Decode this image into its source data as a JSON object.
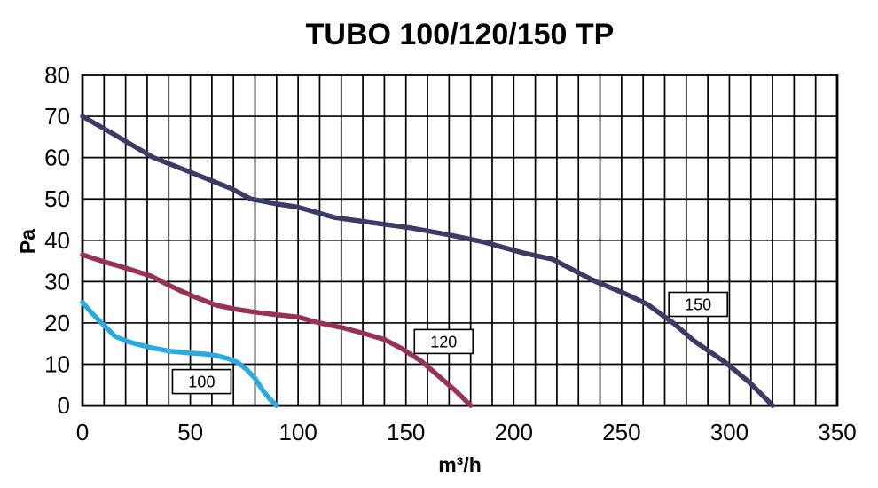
{
  "chart_data": {
    "type": "line",
    "title": "TUBO 100/120/150 TP",
    "xlabel": "m³/h",
    "ylabel": "Pa",
    "xlim": [
      0,
      350
    ],
    "ylim": [
      0,
      80
    ],
    "x_ticks": [
      0,
      50,
      100,
      150,
      200,
      250,
      300,
      350
    ],
    "y_ticks": [
      0,
      10,
      20,
      30,
      40,
      50,
      60,
      70,
      80
    ],
    "grid_step_x": 10,
    "grid_step_y": 10,
    "grid_on": true,
    "legend_position": "inline-boxes-on-curves",
    "series": [
      {
        "name": "150",
        "color": "#3c3b66",
        "label_at": [
          285.5,
          24.5
        ],
        "points": [
          [
            0,
            70
          ],
          [
            15,
            65.5
          ],
          [
            33,
            60
          ],
          [
            50,
            56.5
          ],
          [
            69,
            52.5
          ],
          [
            78,
            50
          ],
          [
            90,
            48.8
          ],
          [
            100,
            48
          ],
          [
            117,
            45.5
          ],
          [
            135,
            44.2
          ],
          [
            152,
            43
          ],
          [
            170,
            41.3
          ],
          [
            186,
            39.6
          ],
          [
            204,
            37
          ],
          [
            218,
            35.4
          ],
          [
            238,
            30
          ],
          [
            252,
            27
          ],
          [
            262,
            24.5
          ],
          [
            274,
            20
          ],
          [
            284,
            15.5
          ],
          [
            298,
            10.5
          ],
          [
            310,
            5.3
          ],
          [
            320,
            0
          ]
        ]
      },
      {
        "name": "120",
        "color": "#96325a",
        "label_at": [
          167.5,
          15.5
        ],
        "points": [
          [
            0,
            36.5
          ],
          [
            10,
            34.8
          ],
          [
            20,
            33.3
          ],
          [
            32,
            31.3
          ],
          [
            37,
            29.9
          ],
          [
            45,
            27.9
          ],
          [
            52,
            26.3
          ],
          [
            62,
            24.3
          ],
          [
            70,
            23.4
          ],
          [
            80,
            22.6
          ],
          [
            90,
            22
          ],
          [
            100,
            21.4
          ],
          [
            110,
            20
          ],
          [
            121,
            18.8
          ],
          [
            131,
            17.4
          ],
          [
            140,
            16
          ],
          [
            148,
            13.8
          ],
          [
            157,
            10.8
          ],
          [
            165,
            7.2
          ],
          [
            173,
            3.6
          ],
          [
            180,
            0
          ]
        ]
      },
      {
        "name": "100",
        "color": "#29abe2",
        "label_at": [
          55.3,
          5.8
        ],
        "points": [
          [
            0,
            25
          ],
          [
            4,
            22.6
          ],
          [
            8,
            20.4
          ],
          [
            12,
            18.4
          ],
          [
            15,
            16.8
          ],
          [
            20,
            15.7
          ],
          [
            25,
            14.9
          ],
          [
            32,
            14
          ],
          [
            40,
            13.2
          ],
          [
            48,
            12.8
          ],
          [
            56,
            12.5
          ],
          [
            62,
            12.1
          ],
          [
            68,
            11.3
          ],
          [
            72,
            10.4
          ],
          [
            76,
            8.8
          ],
          [
            80,
            6.6
          ],
          [
            84,
            3.4
          ],
          [
            87,
            1.5
          ],
          [
            90,
            0
          ]
        ]
      }
    ],
    "colors": {
      "grid": "#000000",
      "border": "#000000",
      "tick_text": "#000000",
      "label_box_fill": "#ffffff",
      "label_box_border": "#000000",
      "background": "#ffffff"
    }
  }
}
